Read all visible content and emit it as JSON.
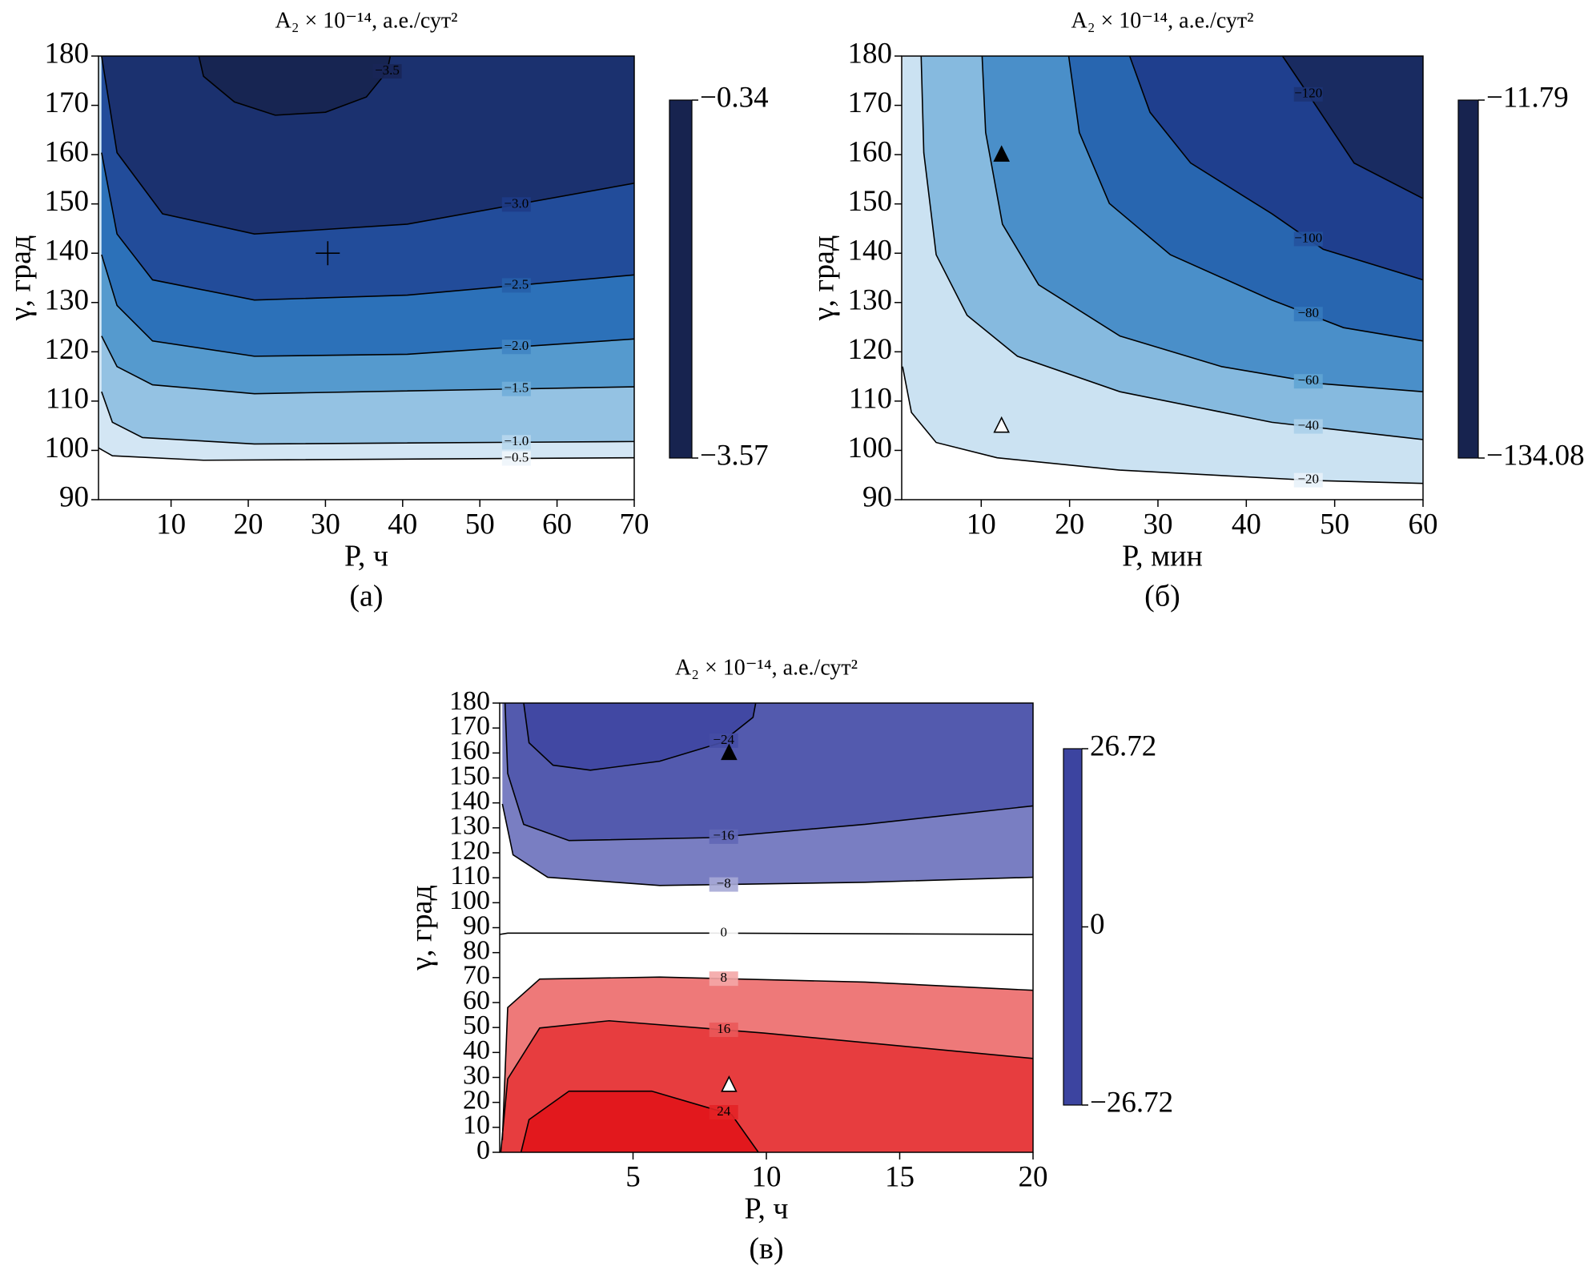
{
  "chart_data": [
    {
      "type": "contour",
      "title": "A₂ × 10⁻¹⁴, а.е./сут²",
      "xlabel": "P, ч",
      "ylabel": "γ, град",
      "caption": "(а)",
      "xlim": [
        0.6,
        70
      ],
      "ylim": [
        90,
        180
      ],
      "xticks": [
        10,
        20,
        30,
        40,
        50,
        60,
        70
      ],
      "yticks": [
        90,
        100,
        110,
        120,
        130,
        140,
        150,
        160,
        170,
        180
      ],
      "clim": [
        -3.57,
        -0.34
      ],
      "cticks": [
        {
          "value": -0.34,
          "label": "−0.34"
        },
        {
          "value": -3.57,
          "label": "−3.57"
        }
      ],
      "colormap": [
        "#17234f",
        "#1f3f8f",
        "#2a6fb8",
        "#5ea3d3",
        "#b9d8ee",
        "#ffffff"
      ],
      "contours": [
        {
          "level": -0.5,
          "label": "−0.5",
          "x": [
            0.6,
            2.4,
            14.2,
            70
          ],
          "y": [
            100.5,
            98.9,
            98.0,
            98.5
          ]
        },
        {
          "level": -1.0,
          "label": "−1.0",
          "x": [
            1.0,
            2.4,
            6.3,
            20.8,
            70
          ],
          "y": [
            111.9,
            105.7,
            102.6,
            101.3,
            101.8
          ]
        },
        {
          "level": -1.5,
          "label": "−1.5",
          "x": [
            1.0,
            3.0,
            7.6,
            20.8,
            70
          ],
          "y": [
            123.2,
            117.0,
            113.3,
            111.5,
            112.9
          ]
        },
        {
          "level": -2.0,
          "label": "−2.0",
          "x": [
            1.0,
            3.0,
            7.6,
            20.8,
            40.6,
            70
          ],
          "y": [
            139.7,
            129.4,
            122.2,
            119.1,
            119.5,
            122.6
          ]
        },
        {
          "level": -2.5,
          "label": "−2.5",
          "x": [
            1.0,
            3.0,
            7.6,
            20.8,
            40.6,
            70
          ],
          "y": [
            160.4,
            143.9,
            134.6,
            130.5,
            131.5,
            135.6
          ]
        },
        {
          "level": -3.0,
          "label": "−3.0",
          "x": [
            1.0,
            3.0,
            8.9,
            20.8,
            40.6,
            70
          ],
          "y": [
            180,
            160.4,
            148.0,
            143.9,
            145.9,
            154.2
          ]
        },
        {
          "level": -3.5,
          "label": "−3.5",
          "x": [
            13.6,
            14.2,
            18.2,
            23.5,
            30.0,
            35.3,
            38.0,
            38.4
          ],
          "y": [
            180,
            175.9,
            170.7,
            168.0,
            168.6,
            171.7,
            176.9,
            180
          ]
        }
      ],
      "markers": [
        {
          "x": 30.3,
          "y": 140,
          "symbol": "plus"
        }
      ]
    },
    {
      "type": "contour",
      "title": "A₂ × 10⁻¹⁴, а.е./сут²",
      "xlabel": "P, мин",
      "ylabel": "γ, град",
      "caption": "(б)",
      "xlim": [
        1,
        60
      ],
      "ylim": [
        90,
        180
      ],
      "xticks": [
        10,
        20,
        30,
        40,
        50,
        60
      ],
      "yticks": [
        90,
        100,
        110,
        120,
        130,
        140,
        150,
        160,
        170,
        180
      ],
      "clim": [
        -134.08,
        -11.79
      ],
      "cticks": [
        {
          "value": -11.79,
          "label": "−11.79"
        },
        {
          "value": -134.08,
          "label": "−134.08"
        }
      ],
      "colormap": [
        "#17234f",
        "#1f3f8f",
        "#2a6fb8",
        "#5ea3d3",
        "#b9d8ee",
        "#ffffff"
      ],
      "contours": [
        {
          "level": -20,
          "label": "−20",
          "x": [
            1.1,
            2.1,
            4.9,
            11.8,
            25.7,
            47.6,
            60
          ],
          "y": [
            117.0,
            107.7,
            101.6,
            98.5,
            96.0,
            93.9,
            93.3
          ]
        },
        {
          "level": -40,
          "label": "−40",
          "x": [
            3.2,
            3.5,
            4.9,
            8.4,
            14.1,
            25.7,
            42.9,
            60
          ],
          "y": [
            180,
            160.4,
            139.7,
            127.4,
            119.1,
            111.9,
            105.7,
            102.2
          ]
        },
        {
          "level": -60,
          "label": "−60",
          "x": [
            10.1,
            10.5,
            12.4,
            16.5,
            25.7,
            37.2,
            48.7,
            60
          ],
          "y": [
            180,
            164.5,
            145.9,
            133.6,
            123.2,
            117.0,
            113.5,
            111.9
          ]
        },
        {
          "level": -80,
          "label": "−80",
          "x": [
            19.9,
            21.1,
            24.5,
            31.4,
            42.9,
            51.0,
            60
          ],
          "y": [
            180,
            164.5,
            150.1,
            139.7,
            130.5,
            124.9,
            122.2
          ]
        },
        {
          "level": -100,
          "label": "−100",
          "x": [
            26.8,
            29.1,
            33.7,
            42.9,
            48.7,
            60
          ],
          "y": [
            180,
            168.6,
            158.3,
            148.0,
            140.8,
            134.6
          ]
        },
        {
          "level": -120,
          "label": "−120",
          "x": [
            44.1,
            47.6,
            52.2,
            60
          ],
          "y": [
            180,
            170.7,
            158.3,
            151.1
          ]
        }
      ],
      "markers": [
        {
          "x": 12.3,
          "y": 160,
          "symbol": "triangle-filled"
        },
        {
          "x": 12.3,
          "y": 105,
          "symbol": "triangle-open"
        }
      ]
    },
    {
      "type": "contour",
      "title": "A₂ × 10⁻¹⁴, а.е./сут²",
      "xlabel": "P, ч",
      "ylabel": "γ, град",
      "caption": "(в)",
      "xlim": [
        0,
        20
      ],
      "ylim": [
        0,
        180
      ],
      "xticks": [
        5,
        10,
        15,
        20
      ],
      "yticks": [
        0,
        10,
        20,
        30,
        40,
        50,
        60,
        70,
        80,
        90,
        100,
        110,
        120,
        130,
        140,
        150,
        160,
        170,
        180
      ],
      "clim": [
        -26.72,
        26.72
      ],
      "cticks": [
        {
          "value": 26.72,
          "label": "26.72"
        },
        0,
        {
          "value": -26.72,
          "label": "−26.72"
        }
      ],
      "colormap": [
        "#3c44a0",
        "#6a6fbb",
        "#ffffff",
        "#ec6a6a",
        "#e10f14"
      ],
      "contours": [
        {
          "level": -24,
          "label": "−24",
          "x": [
            0.9,
            1.1,
            2.0,
            3.4,
            6.0,
            8.3,
            9.5,
            9.6
          ],
          "y": [
            180,
            164.1,
            155.1,
            153.1,
            156.7,
            164.1,
            174.3,
            180
          ]
        },
        {
          "level": -16,
          "label": "−16",
          "x": [
            0.2,
            0.3,
            0.9,
            2.6,
            8.0,
            13.7,
            20
          ],
          "y": [
            180,
            151.8,
            131.4,
            124.9,
            126.1,
            131.4,
            138.8
          ]
        },
        {
          "level": -8,
          "label": "−8",
          "x": [
            0.1,
            0.5,
            1.8,
            6.0,
            13.7,
            20
          ],
          "y": [
            139.6,
            119.2,
            110.2,
            106.9,
            108.2,
            110.2
          ]
        },
        {
          "level": 0,
          "label": "0",
          "x": [
            0,
            0.3,
            8.0,
            20
          ],
          "y": [
            87.3,
            87.8,
            87.8,
            87.3
          ]
        },
        {
          "level": 8,
          "label": "8",
          "x": [
            0.1,
            0.3,
            1.5,
            6.0,
            13.7,
            20
          ],
          "y": [
            4.9,
            58.0,
            69.4,
            70.2,
            68.2,
            64.9
          ]
        },
        {
          "level": 16,
          "label": "16",
          "x": [
            0.04,
            0.3,
            1.5,
            4.1,
            9.9,
            20
          ],
          "y": [
            0,
            29.4,
            49.8,
            52.7,
            47.8,
            37.6
          ]
        },
        {
          "level": 24,
          "label": "24",
          "x": [
            0.8,
            1.1,
            2.6,
            5.7,
            8.7,
            9.7
          ],
          "y": [
            0,
            13.1,
            24.5,
            24.5,
            15.1,
            0
          ]
        }
      ],
      "markers": [
        {
          "x": 8.6,
          "y": 160,
          "symbol": "triangle-filled"
        },
        {
          "x": 8.6,
          "y": 27,
          "symbol": "triangle-open"
        }
      ]
    }
  ]
}
